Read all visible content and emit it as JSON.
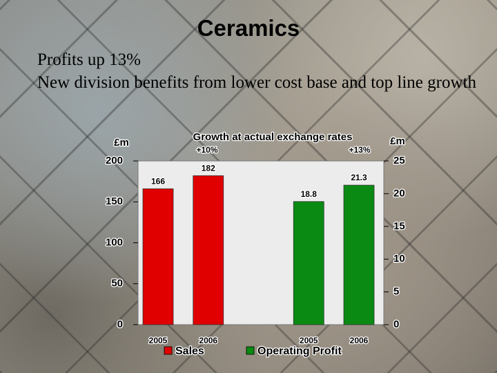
{
  "slide": {
    "title": "Ceramics",
    "body": [
      "Profits up 13%",
      "New division benefits from lower cost base and top line growth"
    ]
  },
  "chart_data": {
    "type": "bar",
    "title": "Growth at actual exchange rates",
    "y_label": "£m",
    "y2_label": "£m",
    "annotations": [
      "+10%",
      "+13%"
    ],
    "categories": [
      "2005",
      "2006",
      "2005",
      "2006"
    ],
    "series": [
      {
        "name": "Sales",
        "color": "#e00000",
        "values": [
          166,
          182,
          null,
          null
        ]
      },
      {
        "name": "Operating Profit",
        "color": "#0a8a12",
        "axis": "y2",
        "values": [
          null,
          null,
          18.8,
          21.3
        ]
      }
    ],
    "ylim": [
      0,
      200
    ],
    "yticks": [
      0,
      50,
      100,
      150,
      200
    ],
    "y2lim": [
      0,
      25
    ],
    "y2ticks": [
      0,
      5,
      10,
      15,
      20,
      25
    ],
    "legend": "bottom"
  }
}
